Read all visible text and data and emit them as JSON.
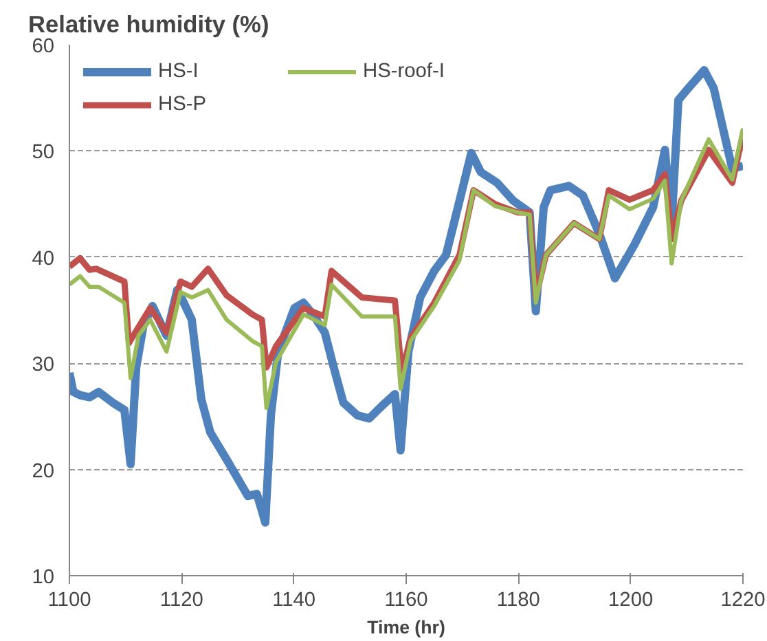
{
  "chart_data": {
    "type": "line",
    "title": "Relative humidity (%)",
    "xlabel": "Time (hr)",
    "xlim": [
      1100,
      1220
    ],
    "xticks": [
      1100,
      1120,
      1140,
      1160,
      1180,
      1200,
      1220
    ],
    "ylim": [
      10,
      60
    ],
    "yticks": [
      10,
      20,
      30,
      40,
      50,
      60
    ],
    "grid": "y",
    "legend": "top left",
    "marker": "none",
    "line_style": "solid",
    "series": [
      {
        "name": "HS-I",
        "color": "#4f81bd",
        "x": [
          1100,
          1100.7,
          1101.9,
          1103.6,
          1105.2,
          1107.7,
          1109.8,
          1110.9,
          1111.9,
          1113.2,
          1114.8,
          1117.3,
          1119.2,
          1120.2,
          1121.8,
          1123.5,
          1125.1,
          1128.5,
          1131.8,
          1133.4,
          1134.9,
          1135.9,
          1137.2,
          1140.1,
          1141.7,
          1143.4,
          1145.5,
          1147.1,
          1148.8,
          1151.3,
          1153.4,
          1155.9,
          1158.0,
          1159.0,
          1160.4,
          1162.5,
          1165.0,
          1167.1,
          1169.5,
          1171.6,
          1173.3,
          1176.2,
          1179.1,
          1182.0,
          1183.1,
          1184.5,
          1185.7,
          1189.0,
          1191.5,
          1194.4,
          1197.2,
          1200.7,
          1204.0,
          1206.1,
          1207.3,
          1208.5,
          1210.6,
          1213.1,
          1214.8,
          1218.1,
          1220
        ],
        "values": [
          29.1,
          27.3,
          27.0,
          26.8,
          27.3,
          26.3,
          25.6,
          20.5,
          29.6,
          33.6,
          35.4,
          32.6,
          36.9,
          35.9,
          34.1,
          26.6,
          23.5,
          20.5,
          17.5,
          17.7,
          15.0,
          25.1,
          31.1,
          35.2,
          35.7,
          34.6,
          32.9,
          29.6,
          26.3,
          25.1,
          24.8,
          26.1,
          27.1,
          21.8,
          31.1,
          36.2,
          38.7,
          40.2,
          45.3,
          49.8,
          48.0,
          47.0,
          45.3,
          44.2,
          34.9,
          44.7,
          46.3,
          46.7,
          45.8,
          42.2,
          38.0,
          41.2,
          44.7,
          50.1,
          43.2,
          54.8,
          56.1,
          57.6,
          55.9,
          48.3,
          48.6
        ]
      },
      {
        "name": "HS-P",
        "color": "#c0504d",
        "x": [
          1100,
          1101.9,
          1103.6,
          1104.8,
          1107.7,
          1109.8,
          1110.6,
          1112.3,
          1114.4,
          1117.3,
          1119.8,
          1121.8,
          1124.7,
          1128.0,
          1132.6,
          1134.3,
          1135.1,
          1136.8,
          1141.7,
          1145.5,
          1146.7,
          1152.1,
          1158.0,
          1159.2,
          1160.8,
          1165.0,
          1169.5,
          1172.0,
          1175.8,
          1179.9,
          1182.0,
          1183.1,
          1184.9,
          1189.9,
          1194.4,
          1196.1,
          1199.8,
          1204.0,
          1206.1,
          1207.3,
          1209.0,
          1213.9,
          1218.1,
          1220
        ],
        "values": [
          39.1,
          39.9,
          38.8,
          38.9,
          38.2,
          37.7,
          31.9,
          33.4,
          35.2,
          32.9,
          37.7,
          37.2,
          38.9,
          36.4,
          34.6,
          34.1,
          29.6,
          31.6,
          35.2,
          34.4,
          38.7,
          36.2,
          35.9,
          29.1,
          32.4,
          35.7,
          40.2,
          46.3,
          45.0,
          44.2,
          44.2,
          36.2,
          40.2,
          43.2,
          41.7,
          46.3,
          45.4,
          46.3,
          47.8,
          41.7,
          45.3,
          50.1,
          47.0,
          51.6
        ]
      },
      {
        "name": "HS-roof-I",
        "color": "#9bbb59",
        "x": [
          1100,
          1101.9,
          1103.6,
          1105.2,
          1109.8,
          1110.9,
          1112.3,
          1114.4,
          1117.3,
          1119.8,
          1121.8,
          1124.7,
          1128.0,
          1132.6,
          1134.3,
          1135.1,
          1136.8,
          1141.7,
          1145.5,
          1146.7,
          1152.1,
          1158.0,
          1159.0,
          1160.8,
          1165.0,
          1169.5,
          1172.0,
          1175.8,
          1179.9,
          1182.0,
          1183.1,
          1184.9,
          1189.9,
          1194.4,
          1196.1,
          1199.8,
          1204.0,
          1206.1,
          1207.3,
          1209.0,
          1213.9,
          1218.1,
          1220
        ],
        "values": [
          37.4,
          38.2,
          37.2,
          37.2,
          35.7,
          28.6,
          32.6,
          34.1,
          31.1,
          36.7,
          36.2,
          36.9,
          34.1,
          32.1,
          31.6,
          25.8,
          30.1,
          34.6,
          33.6,
          37.4,
          34.4,
          34.4,
          27.6,
          32.1,
          35.4,
          39.7,
          46.3,
          44.8,
          44.2,
          44.0,
          35.7,
          40.2,
          43.2,
          41.7,
          45.8,
          44.5,
          45.5,
          47.2,
          39.4,
          45.3,
          51.1,
          47.3,
          52.1
        ]
      }
    ]
  }
}
